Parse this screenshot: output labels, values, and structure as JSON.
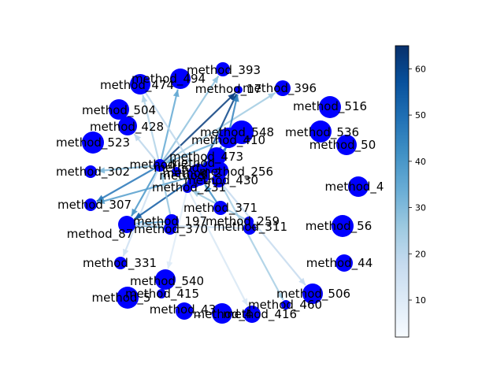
{
  "figure": {
    "node_color": "#0000ff",
    "edge_cmap": "Blues"
  },
  "nodes": [
    {
      "id": "method_393",
      "label": "method_393"
    },
    {
      "id": "method_494",
      "label": "method_494"
    },
    {
      "id": "method_474",
      "label": "method_474"
    },
    {
      "id": "method_17x",
      "label": "method_17"
    },
    {
      "id": "method_396",
      "label": "method_396"
    },
    {
      "id": "method_504",
      "label": "method_504"
    },
    {
      "id": "method_516",
      "label": "method_516"
    },
    {
      "id": "method_428",
      "label": "method_428"
    },
    {
      "id": "method_548",
      "label": "method_548"
    },
    {
      "id": "method_536",
      "label": "method_536"
    },
    {
      "id": "method_523",
      "label": "method_523"
    },
    {
      "id": "method_410",
      "label": "method_410"
    },
    {
      "id": "method_5xa",
      "label": "method_50"
    },
    {
      "id": "method_473",
      "label": "method_473"
    },
    {
      "id": "method_302",
      "label": "method_302"
    },
    {
      "id": "method_cl1",
      "label": "method_2"
    },
    {
      "id": "method_cl2",
      "label": "method_2"
    },
    {
      "id": "method_256",
      "label": "method_256"
    },
    {
      "id": "method_430",
      "label": "method_430"
    },
    {
      "id": "method_231",
      "label": "method_231"
    },
    {
      "id": "method_4xa",
      "label": "method_4"
    },
    {
      "id": "method_307",
      "label": "method_307"
    },
    {
      "id": "method_371",
      "label": "method_371"
    },
    {
      "id": "method_197",
      "label": "method_197"
    },
    {
      "id": "method_259",
      "label": "method_259"
    },
    {
      "id": "method_87",
      "label": "method_87"
    },
    {
      "id": "method_370",
      "label": "method_370"
    },
    {
      "id": "method_311",
      "label": "method_311"
    },
    {
      "id": "method_5xb",
      "label": "method_56"
    },
    {
      "id": "method_331",
      "label": "method_331"
    },
    {
      "id": "method_4xb",
      "label": "method_44"
    },
    {
      "id": "method_540",
      "label": "method_540"
    },
    {
      "id": "method_415",
      "label": "method_415"
    },
    {
      "id": "method_5xc",
      "label": "method_5"
    },
    {
      "id": "method_506",
      "label": "method_506"
    },
    {
      "id": "method_460",
      "label": "method_460"
    },
    {
      "id": "method_43x",
      "label": "method_43"
    },
    {
      "id": "method_4xc",
      "label": "method_4"
    },
    {
      "id": "method_416",
      "label": "method_416"
    },
    {
      "id": "method_cl3",
      "label": "method_"
    },
    {
      "id": "method_cl4",
      "label": "method_"
    },
    {
      "id": "method_cl5",
      "label": "method_"
    }
  ],
  "edges": [
    {
      "source": "method_cl1",
      "target": "method_474",
      "weight": 22
    },
    {
      "source": "method_cl1",
      "target": "method_494",
      "weight": 35
    },
    {
      "source": "method_cl1",
      "target": "method_393",
      "weight": 28
    },
    {
      "source": "method_cl1",
      "target": "method_17x",
      "weight": 62
    },
    {
      "source": "method_cl1",
      "target": "method_396",
      "weight": 25
    },
    {
      "source": "method_cl1",
      "target": "method_428",
      "weight": 20
    },
    {
      "source": "method_cl1",
      "target": "method_307",
      "weight": 48
    },
    {
      "source": "method_cl1",
      "target": "method_87",
      "weight": 40
    },
    {
      "source": "method_cl1",
      "target": "method_331",
      "weight": 15
    },
    {
      "source": "method_cl1",
      "target": "method_302",
      "weight": 30
    },
    {
      "source": "method_cl2",
      "target": "method_548",
      "weight": 50
    },
    {
      "source": "method_cl2",
      "target": "method_410",
      "weight": 44
    },
    {
      "source": "method_cl2",
      "target": "method_87",
      "weight": 55
    },
    {
      "source": "method_cl2",
      "target": "method_307",
      "weight": 38
    },
    {
      "source": "method_cl2",
      "target": "method_17x",
      "weight": 60
    },
    {
      "source": "method_256",
      "target": "method_17x",
      "weight": 45
    },
    {
      "source": "method_430",
      "target": "method_506",
      "weight": 18
    },
    {
      "source": "method_430",
      "target": "method_460",
      "weight": 24
    },
    {
      "source": "method_371",
      "target": "method_cl2",
      "weight": 42
    },
    {
      "source": "method_259",
      "target": "method_231",
      "weight": 26
    },
    {
      "source": "method_370",
      "target": "method_87",
      "weight": 32
    },
    {
      "source": "method_197",
      "target": "method_87",
      "weight": 36
    },
    {
      "source": "method_311",
      "target": "method_87",
      "weight": 14
    },
    {
      "source": "method_231",
      "target": "method_540",
      "weight": 10
    },
    {
      "source": "method_231",
      "target": "method_416",
      "weight": 12
    },
    {
      "source": "method_474",
      "target": "method_cl2",
      "weight": 20
    },
    {
      "source": "method_410",
      "target": "method_cl1",
      "weight": 33
    },
    {
      "source": "method_473",
      "target": "method_cl2",
      "weight": 46
    },
    {
      "source": "method_197",
      "target": "method_cl1",
      "weight": 27
    }
  ],
  "colorbar": {
    "vmin": 2,
    "vmax": 65,
    "ticks": [
      "10",
      "20",
      "30",
      "40",
      "50",
      "60"
    ]
  }
}
